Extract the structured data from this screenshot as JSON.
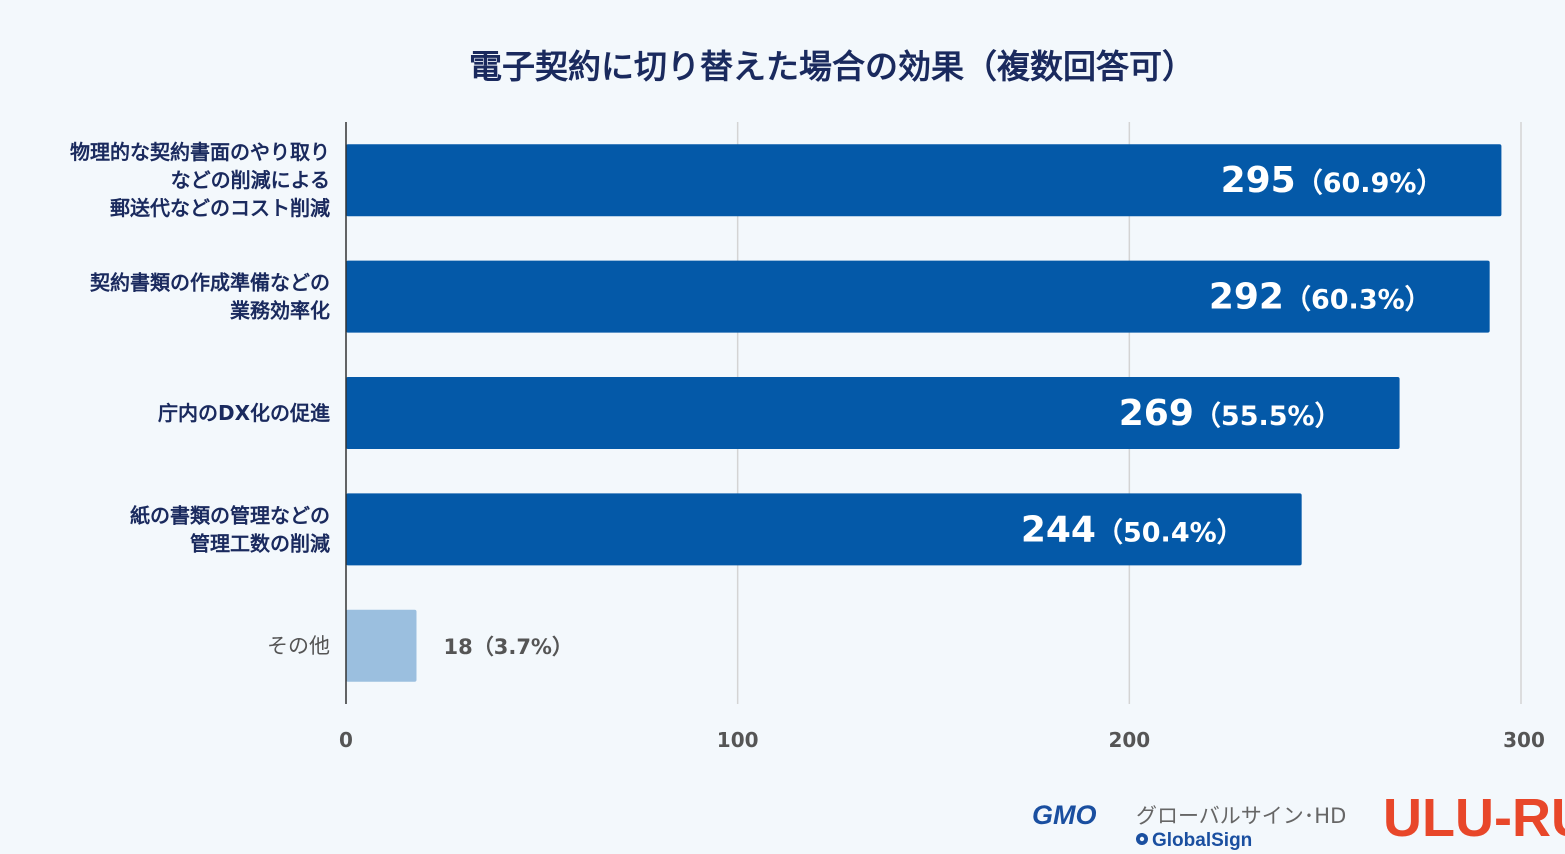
{
  "chart_data": {
    "type": "bar",
    "orientation": "horizontal",
    "title": "電子契約に切り替えた場合の効果（複数回答可）",
    "categories": [
      [
        "物理的な契約書面のやり取り",
        "などの削減による",
        "郵送代などのコスト削減"
      ],
      [
        "契約書類の作成準備などの",
        "業務効率化"
      ],
      [
        "庁内のDX化の促進"
      ],
      [
        "紙の書類の管理などの",
        "管理工数の削減"
      ],
      [
        "その他"
      ]
    ],
    "values": [
      295,
      292,
      269,
      244,
      18
    ],
    "percent_labels": [
      "（60.9%）",
      "（60.3%）",
      "（55.5%）",
      "（50.4%）",
      "（3.7%）"
    ],
    "xlim": [
      0,
      300
    ],
    "ticks": [
      0,
      100,
      200,
      300
    ],
    "grid": true,
    "colors": {
      "main": "#0459a8",
      "other": "#9bbfdf",
      "grid": "#d4d4d4",
      "axis": "#333333"
    }
  },
  "logos": {
    "gmo": "GMO",
    "gmo_text": "グローバルサイン･HD",
    "globalsign": "GlobalSign",
    "uluru": "ULU-RU"
  }
}
